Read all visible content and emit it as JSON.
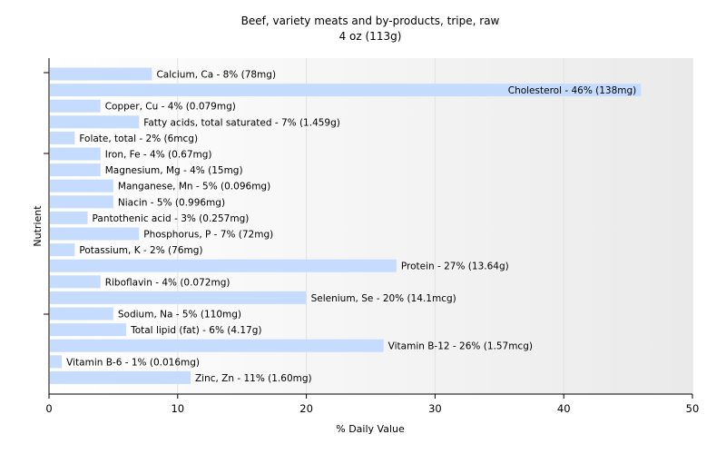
{
  "chart_data": {
    "type": "bar",
    "orientation": "horizontal",
    "title": "Beef, variety meats and by-products, tripe, raw",
    "subtitle": "4 oz (113g)",
    "xlabel": "% Daily Value",
    "ylabel": "Nutrient",
    "xlim": [
      0,
      50
    ],
    "xticks": [
      "0",
      "10",
      "20",
      "30",
      "40",
      "50"
    ],
    "grid": true,
    "bar_color": "#c6dcff",
    "background_gradient": [
      "#ffffff",
      "#eaeaea"
    ],
    "categories": [
      "Calcium, Ca",
      "Cholesterol",
      "Copper, Cu",
      "Fatty acids, total saturated",
      "Folate, total",
      "Iron, Fe",
      "Magnesium, Mg",
      "Manganese, Mn",
      "Niacin",
      "Pantothenic acid",
      "Phosphorus, P",
      "Potassium, K",
      "Protein",
      "Riboflavin",
      "Selenium, Se",
      "Sodium, Na",
      "Total lipid (fat)",
      "Vitamin B-12",
      "Vitamin B-6",
      "Zinc, Zn"
    ],
    "values": [
      8,
      46,
      4,
      7,
      2,
      4,
      4,
      5,
      5,
      3,
      7,
      2,
      27,
      4,
      20,
      5,
      6,
      26,
      1,
      11
    ],
    "labels": [
      "Calcium, Ca - 8% (78mg)",
      "Cholesterol - 46% (138mg)",
      "Copper, Cu - 4% (0.079mg)",
      "Fatty acids, total saturated - 7% (1.459g)",
      "Folate, total - 2% (6mcg)",
      "Iron, Fe - 4% (0.67mg)",
      "Magnesium, Mg - 4% (15mg)",
      "Manganese, Mn - 5% (0.096mg)",
      "Niacin - 5% (0.996mg)",
      "Pantothenic acid - 3% (0.257mg)",
      "Phosphorus, P - 7% (72mg)",
      "Potassium, K - 2% (76mg)",
      "Protein - 27% (13.64g)",
      "Riboflavin - 4% (0.072mg)",
      "Selenium, Se - 20% (14.1mcg)",
      "Sodium, Na - 5% (110mg)",
      "Total lipid (fat) - 6% (4.17g)",
      "Vitamin B-12 - 26% (1.57mcg)",
      "Vitamin B-6 - 1% (0.016mg)",
      "Zinc, Zn - 11% (1.60mg)"
    ]
  }
}
